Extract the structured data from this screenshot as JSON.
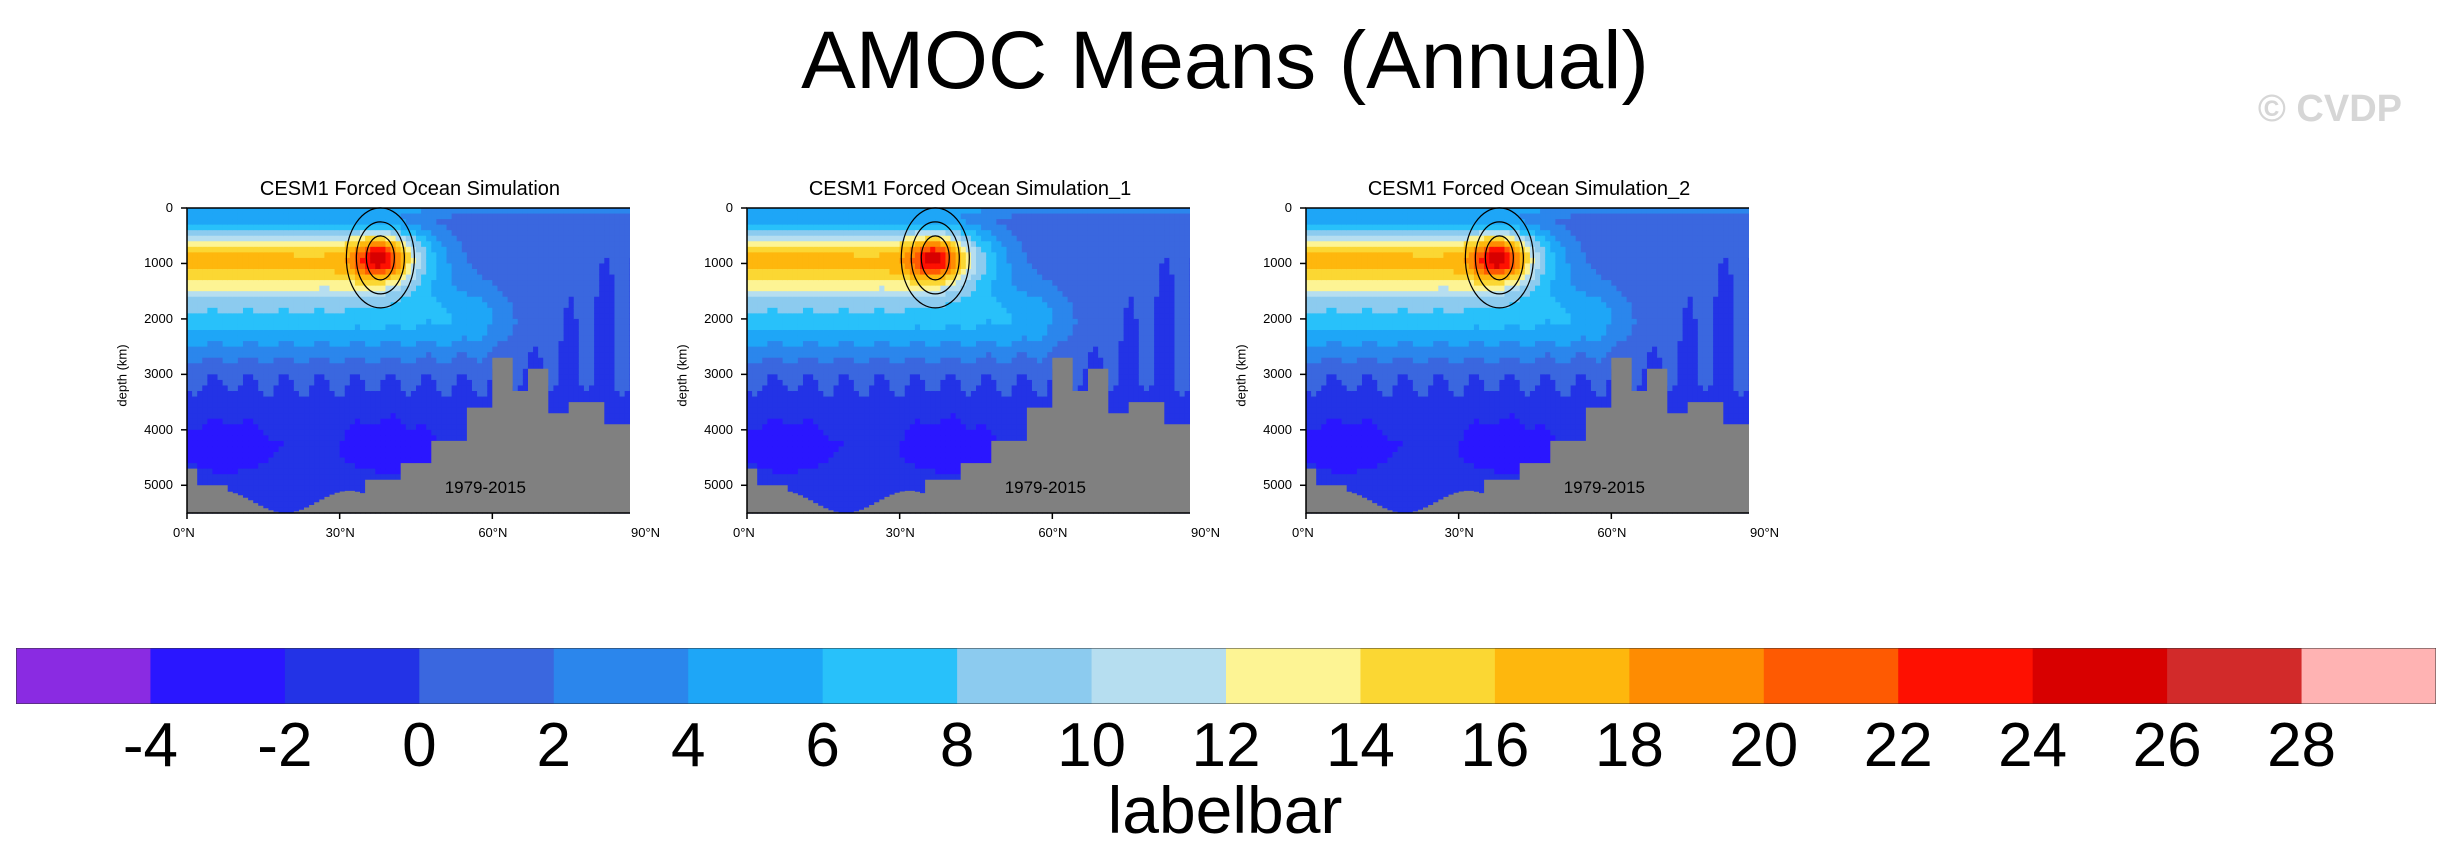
{
  "title": "AMOC Means (Annual)",
  "watermark": "© CVDP",
  "colors": {
    "land": "#808080",
    "contour_line": "#000000",
    "palette": [
      "#8a2be2",
      "#2a16ff",
      "#2333e6",
      "#3a67df",
      "#2b86ec",
      "#1ea6f7",
      "#28c1fa",
      "#8ccbef",
      "#b6def0",
      "#fdf494",
      "#fbd733",
      "#feb70d",
      "#fe8c02",
      "#fe5a02",
      "#fe1001",
      "#d80000",
      "#d22a2a",
      "#ffb3b3"
    ]
  },
  "chart_data": [
    {
      "type": "contour",
      "title": "CESM1 Forced Ocean Simulation",
      "period": "1979-2015",
      "ylabel": "depth (km)",
      "xlabel": "",
      "xlim": [
        0,
        90
      ],
      "ylim": [
        5500,
        0
      ],
      "xticks": [
        0,
        30,
        60,
        90
      ],
      "xtick_labels": [
        "0°N",
        "30°N",
        "60°N",
        "90°N"
      ],
      "yticks": [
        0,
        1000,
        2000,
        3000,
        4000,
        5000
      ],
      "ytick_labels": [
        "0",
        "1000",
        "2000",
        "3000",
        "4000",
        "5000"
      ],
      "max_value": 27,
      "max_location": [
        38,
        900
      ]
    },
    {
      "type": "contour",
      "title": "CESM1 Forced Ocean Simulation_1",
      "period": "1979-2015",
      "ylabel": "depth (km)",
      "xlabel": "",
      "xlim": [
        0,
        90
      ],
      "ylim": [
        5500,
        0
      ],
      "xticks": [
        0,
        30,
        60,
        90
      ],
      "xtick_labels": [
        "0°N",
        "30°N",
        "60°N",
        "90°N"
      ],
      "yticks": [
        0,
        1000,
        2000,
        3000,
        4000,
        5000
      ],
      "ytick_labels": [
        "0",
        "1000",
        "2000",
        "3000",
        "4000",
        "5000"
      ],
      "max_value": 26,
      "max_location": [
        37,
        900
      ]
    },
    {
      "type": "contour",
      "title": "CESM1 Forced Ocean Simulation_2",
      "period": "1979-2015",
      "ylabel": "depth (km)",
      "xlabel": "",
      "xlim": [
        0,
        90
      ],
      "ylim": [
        5500,
        0
      ],
      "xticks": [
        0,
        30,
        60,
        90
      ],
      "xtick_labels": [
        "0°N",
        "30°N",
        "60°N",
        "90°N"
      ],
      "yticks": [
        0,
        1000,
        2000,
        3000,
        4000,
        5000
      ],
      "ytick_labels": [
        "0",
        "1000",
        "2000",
        "3000",
        "4000",
        "5000"
      ],
      "max_value": 27,
      "max_location": [
        38,
        900
      ]
    }
  ],
  "labelbar": {
    "title": "labelbar",
    "levels": [
      "-4",
      "-2",
      "0",
      "2",
      "4",
      "6",
      "8",
      "10",
      "12",
      "14",
      "16",
      "18",
      "20",
      "22",
      "24",
      "26",
      "28"
    ]
  }
}
